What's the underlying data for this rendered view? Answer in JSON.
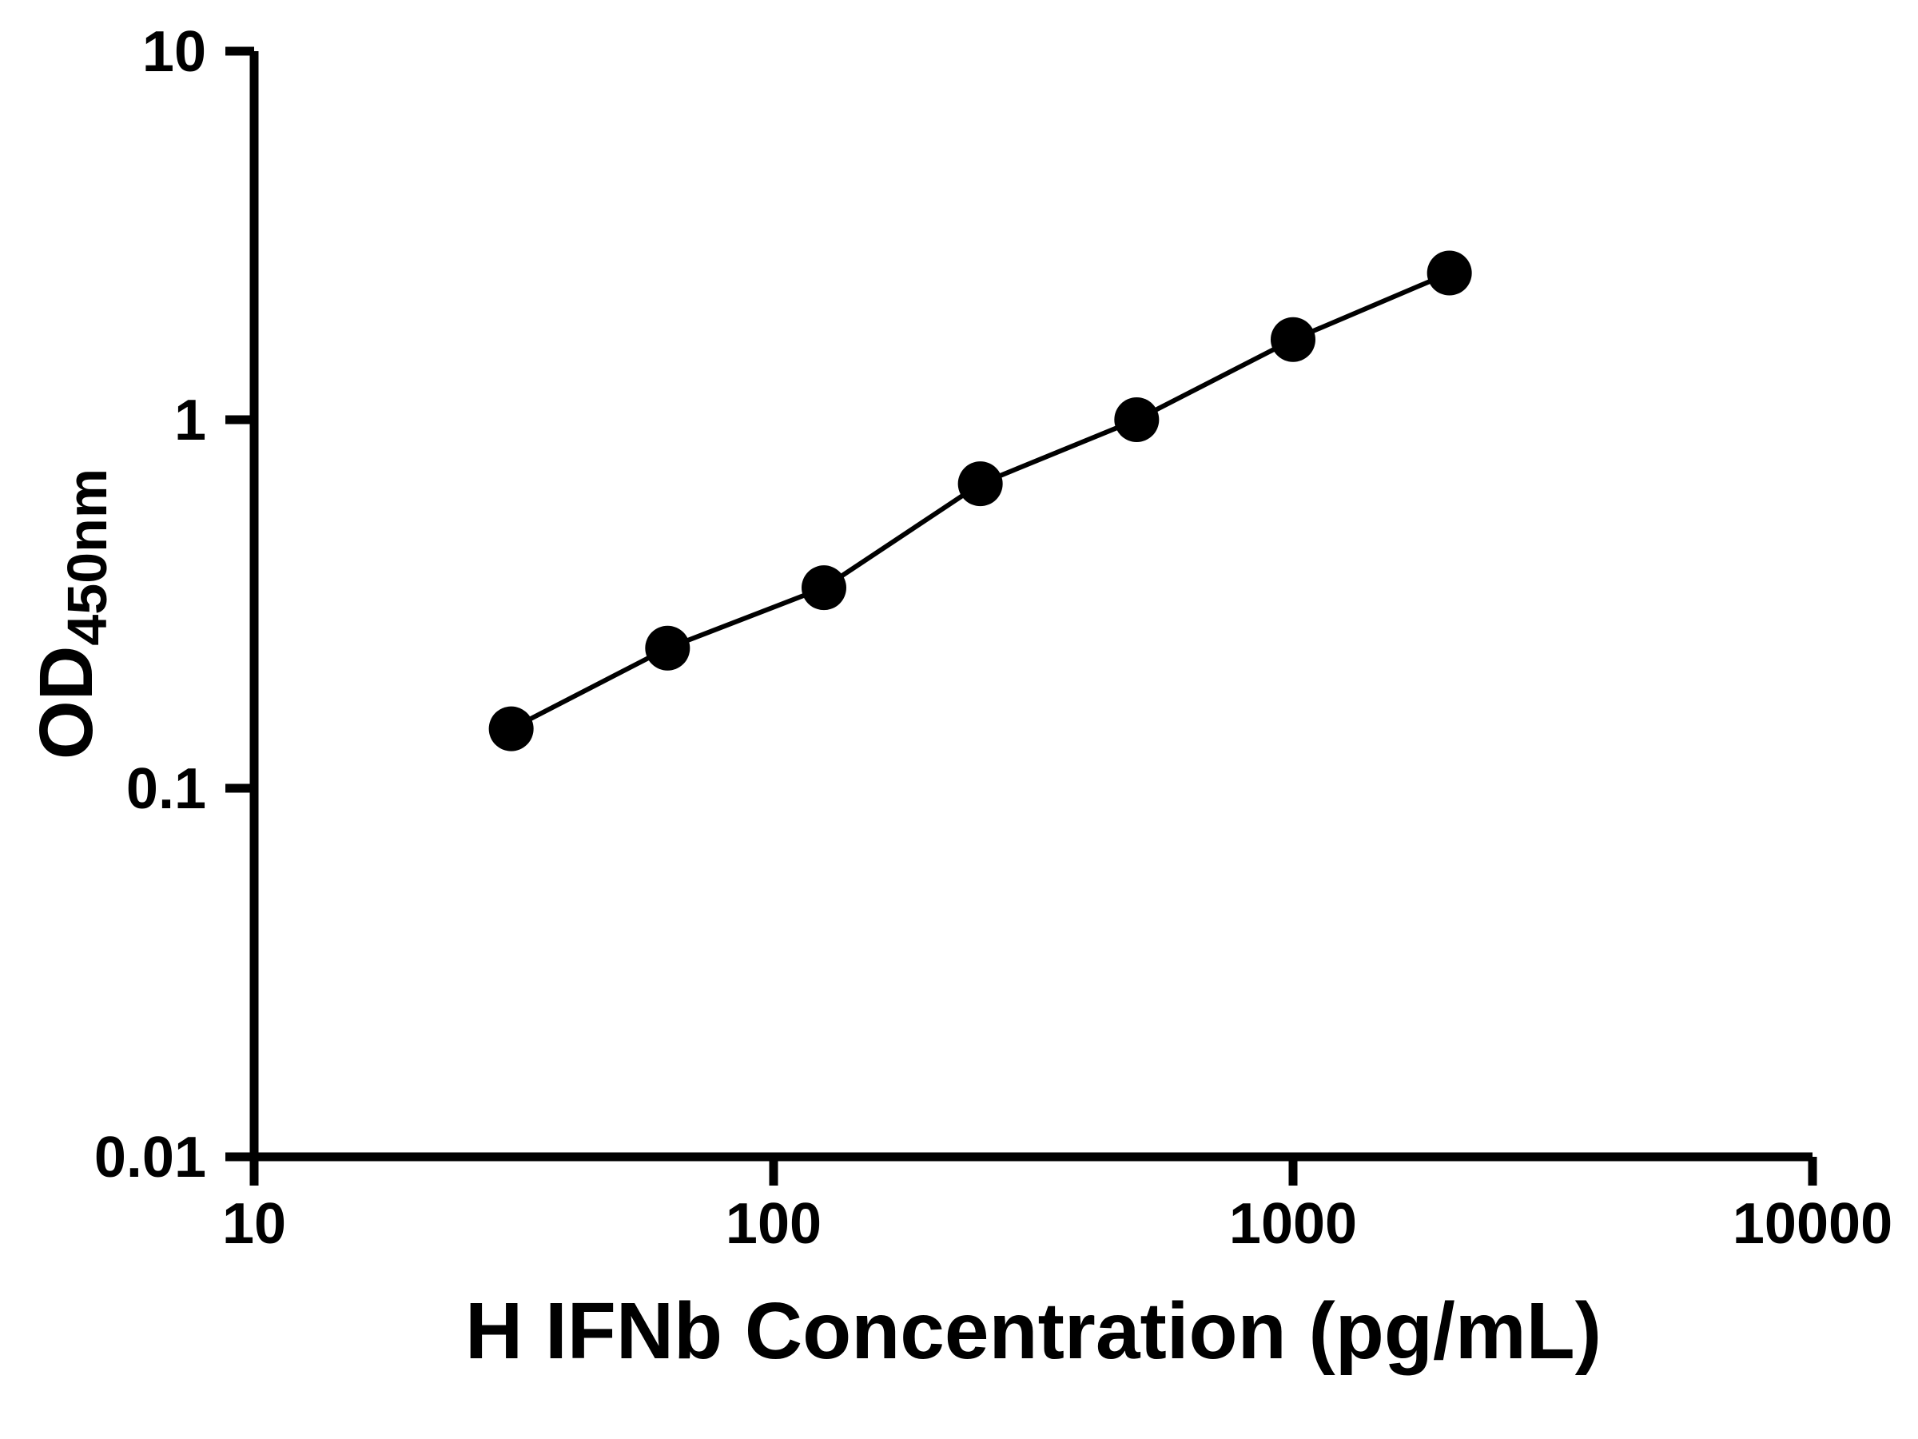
{
  "chart_data": {
    "type": "scatter",
    "title": "",
    "xlabel": "H IFNb Concentration (pg/mL)",
    "ylabel_main": "OD",
    "ylabel_sub": "450nm",
    "x_scale": "log",
    "y_scale": "log",
    "xlim": [
      10,
      10000
    ],
    "ylim": [
      0.01,
      10
    ],
    "x_ticks": [
      10,
      100,
      1000,
      10000
    ],
    "y_ticks": [
      0.01,
      0.1,
      1,
      10
    ],
    "x_tick_labels": [
      "10",
      "100",
      "1000",
      "10000"
    ],
    "y_tick_labels": [
      "0.01",
      "0.1",
      "1",
      "10"
    ],
    "x": [
      31.25,
      62.5,
      125,
      250,
      500,
      1000,
      2000
    ],
    "y": [
      0.145,
      0.24,
      0.35,
      0.67,
      1.0,
      1.65,
      2.5
    ],
    "grid": false,
    "legend": false,
    "marker": "filled-circle",
    "marker_color": "#000000",
    "line_color": "#000000",
    "axis_color": "#000000",
    "background_color": "#ffffff"
  }
}
